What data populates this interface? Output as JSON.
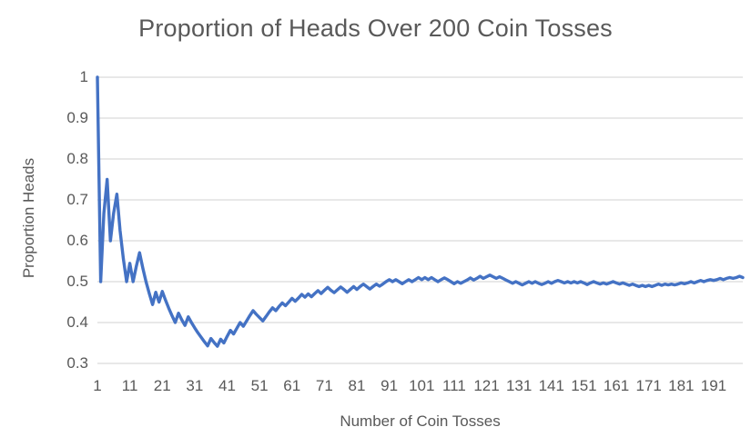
{
  "colors": {
    "line": "#4472C4",
    "gridline": "#D9D9D9",
    "text": "#595959",
    "background": "#FFFFFF"
  },
  "chart_data": {
    "type": "line",
    "title": "Proportion of Heads Over 200 Coin Tosses",
    "xlabel": "Number of Coin Tosses",
    "ylabel": "Proportion Heads",
    "xlim": [
      1,
      200
    ],
    "ylim": [
      0.3,
      1.0
    ],
    "grid": "horizontal",
    "legend_position": "none",
    "yticks": [
      1,
      0.9,
      0.8,
      0.7,
      0.6,
      0.5,
      0.4,
      0.3
    ],
    "ytick_labels": [
      "1",
      "0.9",
      "0.8",
      "0.7",
      "0.6",
      "0.5",
      "0.4",
      "0.3"
    ],
    "xticks": [
      1,
      11,
      21,
      31,
      41,
      51,
      61,
      71,
      81,
      91,
      101,
      111,
      121,
      131,
      141,
      151,
      161,
      171,
      181,
      191
    ],
    "series": [
      {
        "name": "Proportion Heads",
        "color": "#4472C4",
        "x_start": 1,
        "x_step": 1,
        "values": [
          1.0,
          0.5,
          0.667,
          0.75,
          0.6,
          0.667,
          0.714,
          0.625,
          0.556,
          0.5,
          0.545,
          0.5,
          0.538,
          0.571,
          0.533,
          0.5,
          0.471,
          0.444,
          0.474,
          0.45,
          0.476,
          0.455,
          0.435,
          0.417,
          0.4,
          0.423,
          0.407,
          0.393,
          0.414,
          0.4,
          0.387,
          0.375,
          0.364,
          0.353,
          0.343,
          0.361,
          0.351,
          0.342,
          0.359,
          0.35,
          0.366,
          0.381,
          0.372,
          0.386,
          0.4,
          0.391,
          0.404,
          0.417,
          0.429,
          0.42,
          0.412,
          0.404,
          0.415,
          0.426,
          0.436,
          0.429,
          0.439,
          0.448,
          0.441,
          0.45,
          0.459,
          0.452,
          0.46,
          0.469,
          0.462,
          0.47,
          0.463,
          0.471,
          0.478,
          0.471,
          0.479,
          0.486,
          0.479,
          0.473,
          0.48,
          0.487,
          0.481,
          0.474,
          0.481,
          0.488,
          0.481,
          0.488,
          0.494,
          0.488,
          0.482,
          0.488,
          0.494,
          0.489,
          0.494,
          0.5,
          0.505,
          0.5,
          0.505,
          0.5,
          0.495,
          0.5,
          0.505,
          0.5,
          0.505,
          0.51,
          0.505,
          0.51,
          0.505,
          0.51,
          0.505,
          0.5,
          0.505,
          0.509,
          0.505,
          0.5,
          0.495,
          0.5,
          0.496,
          0.5,
          0.504,
          0.509,
          0.504,
          0.508,
          0.513,
          0.508,
          0.512,
          0.516,
          0.512,
          0.508,
          0.512,
          0.508,
          0.504,
          0.5,
          0.496,
          0.5,
          0.496,
          0.492,
          0.496,
          0.5,
          0.496,
          0.5,
          0.496,
          0.493,
          0.496,
          0.5,
          0.496,
          0.5,
          0.503,
          0.5,
          0.497,
          0.5,
          0.497,
          0.5,
          0.497,
          0.5,
          0.497,
          0.493,
          0.497,
          0.5,
          0.497,
          0.494,
          0.497,
          0.494,
          0.497,
          0.5,
          0.497,
          0.494,
          0.497,
          0.494,
          0.491,
          0.494,
          0.491,
          0.488,
          0.491,
          0.488,
          0.491,
          0.488,
          0.491,
          0.494,
          0.491,
          0.494,
          0.492,
          0.494,
          0.492,
          0.494,
          0.497,
          0.495,
          0.497,
          0.5,
          0.497,
          0.5,
          0.503,
          0.5,
          0.503,
          0.505,
          0.503,
          0.505,
          0.508,
          0.505,
          0.508,
          0.51,
          0.508,
          0.51,
          0.513,
          0.51
        ]
      }
    ]
  }
}
